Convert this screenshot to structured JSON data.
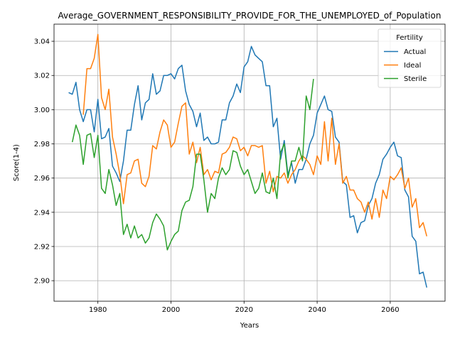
{
  "chart_data": {
    "type": "line",
    "title": "Average_GOVERNMENT_RESPONSIBILITY_PROVIDE_FOR_THE_UNEMPLOYED_of_Population",
    "xlabel": "Years",
    "ylabel": "Score(1-4)",
    "xlim": [
      1968,
      2075
    ],
    "ylim": [
      2.888,
      3.05
    ],
    "xticks": [
      1980,
      2000,
      2020,
      2040,
      2060
    ],
    "yticks": [
      2.9,
      2.92,
      2.94,
      2.96,
      2.98,
      3.0,
      3.02,
      3.04
    ],
    "xtick_labels": [
      "1980",
      "2000",
      "2020",
      "2040",
      "2060"
    ],
    "ytick_labels": [
      "2.90",
      "2.92",
      "2.94",
      "2.96",
      "2.98",
      "3.00",
      "3.02",
      "3.04"
    ],
    "grid": true,
    "legend": {
      "title": "Fertility",
      "placement": "top-right"
    },
    "series": [
      {
        "name": "Actual",
        "color": "#1f77b4",
        "x": [
          1972,
          1973,
          1974,
          1975,
          1976,
          1977,
          1978,
          1979,
          1980,
          1981,
          1982,
          1983,
          1984,
          1985,
          1986,
          1987,
          1988,
          1989,
          1990,
          1991,
          1992,
          1993,
          1994,
          1995,
          1996,
          1997,
          1998,
          1999,
          2000,
          2001,
          2002,
          2003,
          2004,
          2005,
          2006,
          2007,
          2008,
          2009,
          2010,
          2011,
          2012,
          2013,
          2014,
          2015,
          2016,
          2017,
          2018,
          2019,
          2020,
          2021,
          2022,
          2023,
          2024,
          2025,
          2026,
          2027,
          2028,
          2029,
          2030,
          2031,
          2032,
          2033,
          2034,
          2035,
          2036,
          2037,
          2038,
          2039,
          2040,
          2041,
          2042,
          2043,
          2044,
          2045,
          2046,
          2047,
          2048,
          2049,
          2050,
          2051,
          2052,
          2053,
          2054,
          2055,
          2056,
          2057,
          2058,
          2059,
          2060,
          2061,
          2062,
          2063,
          2064,
          2065,
          2066,
          2067,
          2068,
          2069,
          2070
        ],
        "y": [
          3.01,
          3.009,
          3.016,
          3.0,
          2.993,
          3.0,
          3.0,
          2.987,
          3.006,
          2.983,
          2.984,
          2.989,
          2.967,
          2.963,
          2.958,
          2.97,
          2.988,
          2.988,
          3.003,
          3.014,
          2.994,
          3.004,
          3.006,
          3.021,
          3.009,
          3.011,
          3.02,
          3.02,
          3.021,
          3.018,
          3.024,
          3.026,
          3.011,
          3.003,
          2.999,
          2.99,
          2.998,
          2.982,
          2.984,
          2.98,
          2.98,
          2.981,
          2.994,
          2.994,
          3.004,
          3.008,
          3.015,
          3.01,
          3.025,
          3.028,
          3.037,
          3.032,
          3.03,
          3.028,
          3.014,
          3.014,
          2.99,
          2.995,
          2.971,
          2.982,
          2.962,
          2.969,
          2.957,
          2.965,
          2.965,
          2.971,
          2.98,
          2.985,
          2.998,
          3.003,
          3.008,
          3.0,
          2.999,
          2.984,
          2.981,
          2.958,
          2.956,
          2.937,
          2.938,
          2.928,
          2.934,
          2.935,
          2.944,
          2.948,
          2.957,
          2.962,
          2.971,
          2.974,
          2.978,
          2.981,
          2.973,
          2.972,
          2.953,
          2.949,
          2.926,
          2.923,
          2.904,
          2.905,
          2.896
        ]
      },
      {
        "name": "Ideal",
        "color": "#ff7f0e",
        "x": [
          1976,
          1977,
          1978,
          1979,
          1980,
          1981,
          1982,
          1983,
          1984,
          1985,
          1986,
          1987,
          1988,
          1989,
          1990,
          1991,
          1992,
          1993,
          1994,
          1995,
          1996,
          1997,
          1998,
          1999,
          2000,
          2001,
          2002,
          2003,
          2004,
          2005,
          2006,
          2007,
          2008,
          2009,
          2010,
          2011,
          2012,
          2013,
          2014,
          2015,
          2016,
          2017,
          2018,
          2019,
          2020,
          2021,
          2022,
          2023,
          2024,
          2025,
          2026,
          2027,
          2028,
          2029,
          2030,
          2031,
          2032,
          2033,
          2034,
          2035,
          2036,
          2037,
          2038,
          2039,
          2040,
          2041,
          2042,
          2043,
          2044,
          2045,
          2046,
          2047,
          2048,
          2049,
          2050,
          2051,
          2052,
          2053,
          2054,
          2055,
          2056,
          2057,
          2058,
          2059,
          2060,
          2061,
          2062,
          2063,
          2064,
          2065,
          2066,
          2067,
          2068,
          2069,
          2070
        ],
        "y": [
          2.997,
          3.024,
          3.024,
          3.03,
          3.044,
          3.007,
          3.0,
          3.012,
          2.984,
          2.974,
          2.962,
          2.945,
          2.962,
          2.963,
          2.97,
          2.971,
          2.957,
          2.955,
          2.961,
          2.979,
          2.977,
          2.987,
          2.994,
          2.991,
          2.978,
          2.981,
          2.992,
          3.002,
          3.004,
          2.974,
          2.981,
          2.969,
          2.978,
          2.962,
          2.965,
          2.959,
          2.964,
          2.963,
          2.974,
          2.975,
          2.978,
          2.984,
          2.983,
          2.976,
          2.978,
          2.973,
          2.979,
          2.979,
          2.978,
          2.979,
          2.957,
          2.964,
          2.952,
          2.961,
          2.96,
          2.963,
          2.957,
          2.962,
          2.965,
          2.97,
          2.973,
          2.971,
          2.968,
          2.962,
          2.973,
          2.968,
          2.993,
          2.97,
          2.995,
          2.968,
          2.98,
          2.957,
          2.961,
          2.953,
          2.953,
          2.948,
          2.946,
          2.94,
          2.946,
          2.936,
          2.948,
          2.937,
          2.953,
          2.948,
          2.961,
          2.959,
          2.962,
          2.966,
          2.954,
          2.96,
          2.943,
          2.948,
          2.931,
          2.934,
          2.926
        ]
      },
      {
        "name": "Sterile",
        "color": "#2ca02c",
        "x": [
          1973,
          1974,
          1975,
          1976,
          1977,
          1978,
          1979,
          1980,
          1981,
          1982,
          1983,
          1984,
          1985,
          1986,
          1987,
          1988,
          1989,
          1990,
          1991,
          1992,
          1993,
          1994,
          1995,
          1996,
          1997,
          1998,
          1999,
          2000,
          2001,
          2002,
          2003,
          2004,
          2005,
          2006,
          2007,
          2008,
          2009,
          2010,
          2011,
          2012,
          2013,
          2014,
          2015,
          2016,
          2017,
          2018,
          2019,
          2020,
          2021,
          2022,
          2023,
          2024,
          2025,
          2026,
          2027,
          2028,
          2029,
          2030,
          2031,
          2032,
          2033,
          2034,
          2035,
          2036,
          2037,
          2038,
          2039
        ],
        "y": [
          2.981,
          2.991,
          2.985,
          2.968,
          2.985,
          2.986,
          2.972,
          2.985,
          2.954,
          2.951,
          2.965,
          2.956,
          2.944,
          2.951,
          2.927,
          2.933,
          2.925,
          2.932,
          2.925,
          2.927,
          2.922,
          2.925,
          2.934,
          2.939,
          2.936,
          2.932,
          2.918,
          2.923,
          2.927,
          2.929,
          2.941,
          2.946,
          2.947,
          2.955,
          2.974,
          2.974,
          2.959,
          2.94,
          2.951,
          2.948,
          2.96,
          2.966,
          2.962,
          2.965,
          2.976,
          2.975,
          2.967,
          2.962,
          2.965,
          2.958,
          2.951,
          2.954,
          2.963,
          2.952,
          2.951,
          2.96,
          2.948,
          2.975,
          2.98,
          2.96,
          2.97,
          2.97,
          2.978,
          2.97,
          3.008,
          3.0,
          3.018
        ]
      }
    ]
  }
}
